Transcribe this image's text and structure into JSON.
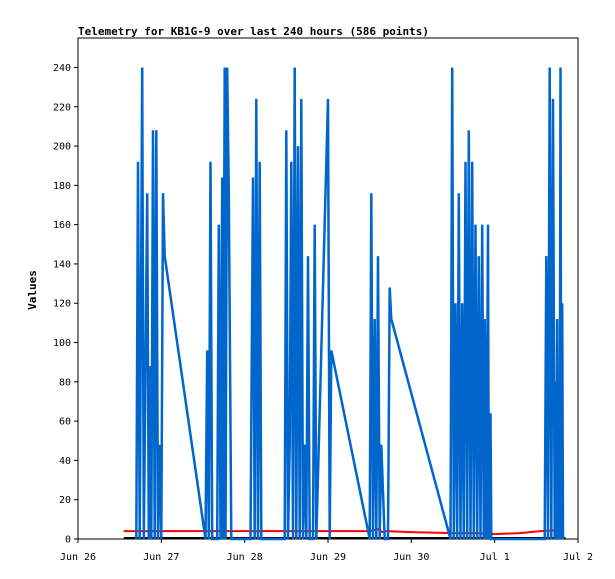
{
  "chart_data": {
    "type": "line",
    "title": "Telemetry for KB1G-9 over last 240 hours (586 points)",
    "xlabel": "",
    "ylabel": "Values",
    "xlim": [
      0,
      6
    ],
    "ylim": [
      0,
      255
    ],
    "x_ticks": [
      {
        "value": 0,
        "label": "Jun 26"
      },
      {
        "value": 1,
        "label": "Jun 27"
      },
      {
        "value": 2,
        "label": "Jun 28"
      },
      {
        "value": 3,
        "label": "Jun 29"
      },
      {
        "value": 4,
        "label": "Jun 30"
      },
      {
        "value": 5,
        "label": "Jul 1"
      },
      {
        "value": 6,
        "label": "Jul 2"
      }
    ],
    "y_ticks": [
      0,
      20,
      40,
      60,
      80,
      100,
      120,
      140,
      160,
      180,
      200,
      220,
      240
    ],
    "series": [
      {
        "color": "#0066cc",
        "points": [
          [
            0.7,
            0
          ],
          [
            0.72,
            192
          ],
          [
            0.74,
            0
          ],
          [
            0.77,
            240
          ],
          [
            0.79,
            0
          ],
          [
            0.83,
            176
          ],
          [
            0.85,
            0
          ],
          [
            0.87,
            88
          ],
          [
            0.88,
            0
          ],
          [
            0.9,
            208
          ],
          [
            0.92,
            0
          ],
          [
            0.94,
            208
          ],
          [
            0.96,
            0
          ],
          [
            0.98,
            48
          ],
          [
            1.0,
            0
          ],
          [
            1.02,
            176
          ],
          [
            1.04,
            144
          ],
          [
            1.53,
            0
          ],
          [
            1.55,
            96
          ],
          [
            1.57,
            0
          ],
          [
            1.59,
            192
          ],
          [
            1.61,
            0
          ],
          [
            1.67,
            0
          ],
          [
            1.69,
            160
          ],
          [
            1.71,
            0
          ],
          [
            1.73,
            184
          ],
          [
            1.74,
            0
          ],
          [
            1.76,
            240
          ],
          [
            1.77,
            0
          ],
          [
            1.79,
            240
          ],
          [
            1.81,
            176
          ],
          [
            1.84,
            0
          ],
          [
            2.07,
            0
          ],
          [
            2.1,
            184
          ],
          [
            2.12,
            0
          ],
          [
            2.14,
            224
          ],
          [
            2.16,
            0
          ],
          [
            2.18,
            192
          ],
          [
            2.2,
            0
          ],
          [
            2.48,
            0
          ],
          [
            2.5,
            208
          ],
          [
            2.52,
            0
          ],
          [
            2.54,
            48
          ],
          [
            2.56,
            192
          ],
          [
            2.58,
            0
          ],
          [
            2.6,
            240
          ],
          [
            2.62,
            0
          ],
          [
            2.64,
            200
          ],
          [
            2.66,
            0
          ],
          [
            2.68,
            224
          ],
          [
            2.7,
            0
          ],
          [
            2.72,
            48
          ],
          [
            2.74,
            0
          ],
          [
            2.76,
            144
          ],
          [
            2.78,
            0
          ],
          [
            2.82,
            0
          ],
          [
            2.84,
            160
          ],
          [
            2.86,
            0
          ],
          [
            3.0,
            224
          ],
          [
            3.02,
            0
          ],
          [
            3.04,
            96
          ],
          [
            3.5,
            0
          ],
          [
            3.52,
            176
          ],
          [
            3.54,
            0
          ],
          [
            3.56,
            112
          ],
          [
            3.58,
            0
          ],
          [
            3.6,
            144
          ],
          [
            3.62,
            0
          ],
          [
            3.64,
            48
          ],
          [
            3.68,
            0
          ],
          [
            3.72,
            0
          ],
          [
            3.74,
            128
          ],
          [
            3.76,
            112
          ],
          [
            4.47,
            0
          ],
          [
            4.49,
            240
          ],
          [
            4.51,
            0
          ],
          [
            4.53,
            120
          ],
          [
            4.55,
            0
          ],
          [
            4.57,
            176
          ],
          [
            4.59,
            0
          ],
          [
            4.61,
            120
          ],
          [
            4.63,
            0
          ],
          [
            4.65,
            192
          ],
          [
            4.67,
            0
          ],
          [
            4.69,
            208
          ],
          [
            4.71,
            0
          ],
          [
            4.73,
            192
          ],
          [
            4.75,
            0
          ],
          [
            4.77,
            160
          ],
          [
            4.79,
            0
          ],
          [
            4.81,
            144
          ],
          [
            4.83,
            0
          ],
          [
            4.85,
            160
          ],
          [
            4.87,
            0
          ],
          [
            4.88,
            112
          ],
          [
            4.9,
            0
          ],
          [
            4.92,
            160
          ],
          [
            4.93,
            0
          ],
          [
            4.95,
            64
          ],
          [
            4.96,
            0
          ],
          [
            5.6,
            0
          ],
          [
            5.62,
            144
          ],
          [
            5.64,
            0
          ],
          [
            5.66,
            240
          ],
          [
            5.68,
            0
          ],
          [
            5.7,
            224
          ],
          [
            5.72,
            0
          ],
          [
            5.73,
            80
          ],
          [
            5.74,
            0
          ],
          [
            5.75,
            112
          ],
          [
            5.76,
            0
          ],
          [
            5.77,
            64
          ],
          [
            5.78,
            0
          ],
          [
            5.79,
            240
          ],
          [
            5.8,
            0
          ],
          [
            5.81,
            120
          ],
          [
            5.82,
            0
          ]
        ]
      },
      {
        "color": "#ff0000",
        "points": [
          [
            0.55,
            4
          ],
          [
            1.5,
            4
          ],
          [
            3.5,
            4
          ],
          [
            3.6,
            5
          ],
          [
            3.65,
            3.5
          ],
          [
            3.7,
            4
          ],
          [
            4.0,
            3.5
          ],
          [
            4.5,
            3
          ],
          [
            4.8,
            3
          ],
          [
            5.0,
            2.5
          ],
          [
            5.3,
            3
          ],
          [
            5.55,
            4
          ],
          [
            5.75,
            4.5
          ]
        ]
      },
      {
        "color": "#000000",
        "points": [
          [
            0.55,
            0.5
          ],
          [
            5.85,
            0.5
          ]
        ]
      }
    ]
  }
}
